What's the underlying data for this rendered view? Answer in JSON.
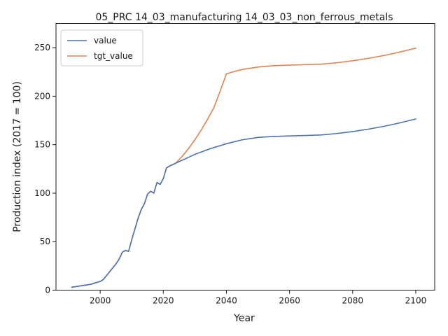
{
  "chart_data": {
    "type": "line",
    "title": "05_PRC 14_03_manufacturing 14_03_03_non_ferrous_metals",
    "xlabel": "Year",
    "ylabel": "Production index (2017 = 100)",
    "xlim": [
      1986,
      2106
    ],
    "ylim": [
      0,
      275
    ],
    "xticks": [
      2000,
      2020,
      2040,
      2060,
      2080,
      2100
    ],
    "yticks": [
      0,
      50,
      100,
      150,
      200,
      250
    ],
    "grid": false,
    "legend": "top-left",
    "series": [
      {
        "name": "value",
        "color": "#4c72b0",
        "x": [
          1991,
          1993,
          1995,
          1997,
          1998,
          1999,
          2000,
          2001,
          2002,
          2003,
          2004,
          2005,
          2006,
          2007,
          2008,
          2009,
          2010,
          2011,
          2012,
          2013,
          2014,
          2015,
          2016,
          2017,
          2018,
          2019,
          2020,
          2021,
          2022,
          2024,
          2026,
          2028,
          2030,
          2035,
          2040,
          2045,
          2050,
          2055,
          2060,
          2065,
          2070,
          2075,
          2080,
          2085,
          2090,
          2095,
          2100
        ],
        "y": [
          3,
          4,
          5,
          6,
          7,
          8,
          9,
          11,
          15,
          19,
          23,
          27,
          32,
          39,
          41,
          40,
          52,
          63,
          74,
          83,
          89,
          99,
          102,
          100,
          111,
          109,
          115,
          126,
          128,
          131,
          134,
          137,
          140,
          146,
          151,
          155,
          157.5,
          158.5,
          159,
          159.5,
          160,
          161.5,
          163.5,
          166,
          169,
          172.5,
          176.5
        ]
      },
      {
        "name": "tgt_value",
        "color": "#dd8452",
        "x": [
          1991,
          1993,
          1995,
          1997,
          1998,
          1999,
          2000,
          2001,
          2002,
          2003,
          2004,
          2005,
          2006,
          2007,
          2008,
          2009,
          2010,
          2011,
          2012,
          2013,
          2014,
          2015,
          2016,
          2017,
          2018,
          2019,
          2020,
          2021,
          2022,
          2024,
          2026,
          2028,
          2030,
          2032,
          2034,
          2036,
          2038,
          2040,
          2042,
          2045,
          2050,
          2055,
          2060,
          2065,
          2070,
          2075,
          2080,
          2085,
          2090,
          2095,
          2100
        ],
        "y": [
          3,
          4,
          5,
          6,
          7,
          8,
          9,
          11,
          15,
          19,
          23,
          27,
          32,
          39,
          41,
          40,
          52,
          63,
          74,
          83,
          89,
          99,
          102,
          100,
          111,
          109,
          115,
          126,
          128,
          131,
          138,
          146,
          155,
          165,
          176,
          188,
          205,
          223,
          225,
          227.5,
          230,
          231.5,
          232,
          232.5,
          233,
          234.5,
          236.5,
          239,
          242,
          245.5,
          249.5
        ]
      }
    ]
  }
}
